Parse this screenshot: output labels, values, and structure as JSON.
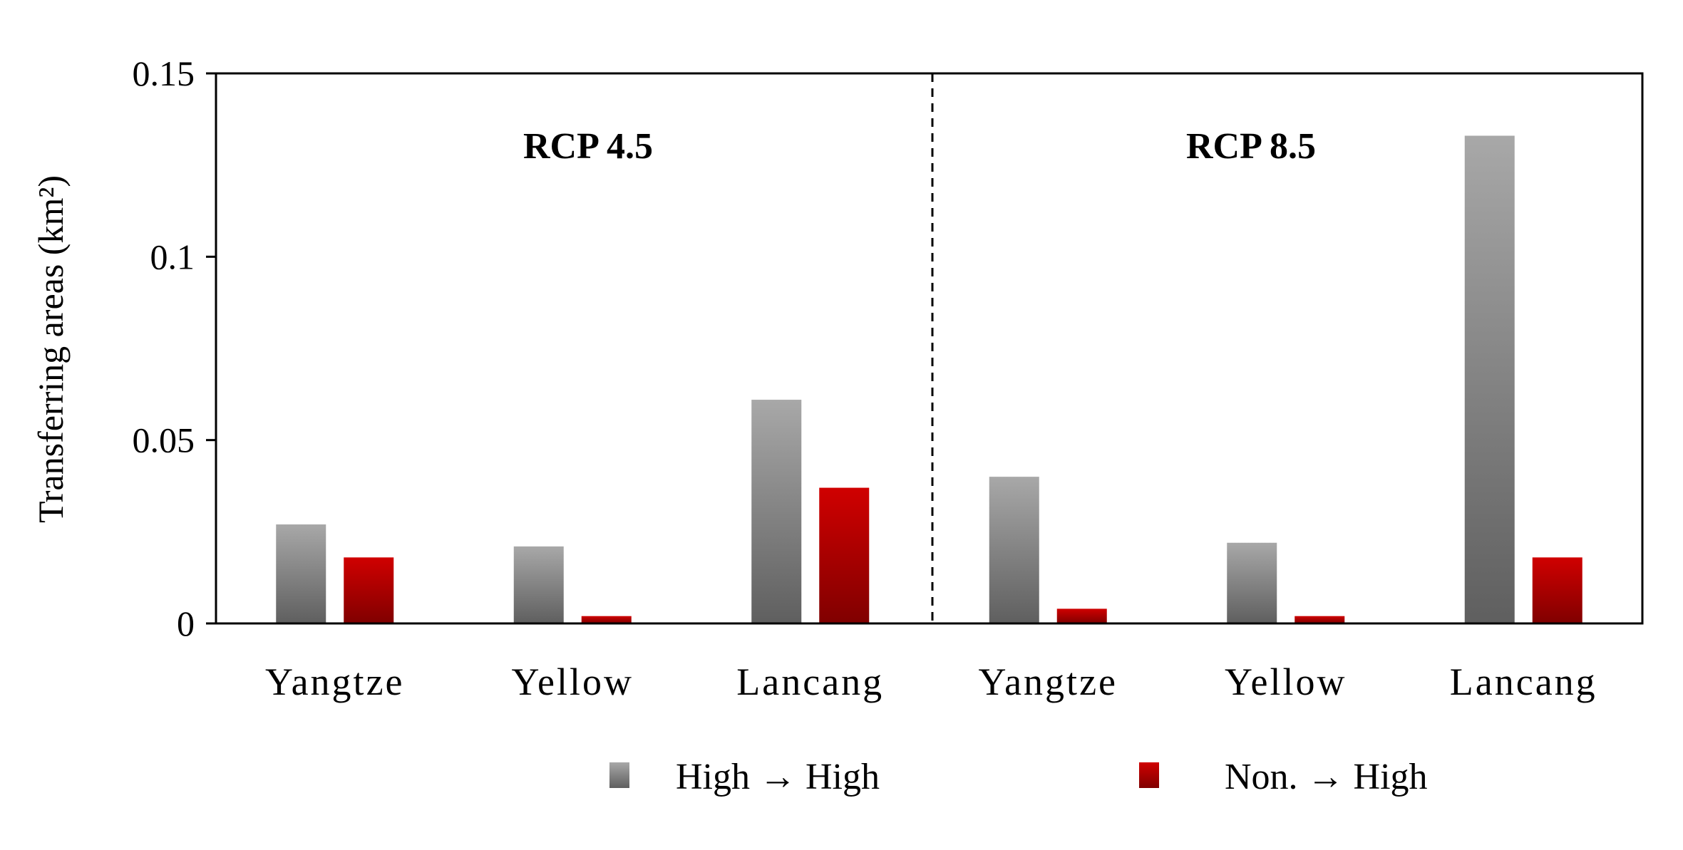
{
  "chart_data": {
    "type": "bar",
    "ylabel": "Transferring areas (km²)",
    "ylim": [
      0,
      0.15
    ],
    "yticks": [
      "0",
      "0.05",
      "0.1",
      "0.15"
    ],
    "ytick_values": [
      0,
      0.05,
      0.1,
      0.15
    ],
    "categories": [
      "Yangtze",
      "Yellow",
      "Lancang",
      "Yangtze",
      "Yellow",
      "Lancang"
    ],
    "group_labels": [
      "RCP 4.5",
      "RCP 8.5"
    ],
    "group_divider": "dashed vertical line between the two scenario groups",
    "series": [
      {
        "name": "High → High",
        "color": "#8c8c8c",
        "values": [
          0.027,
          0.021,
          0.061,
          0.04,
          0.022,
          0.133
        ]
      },
      {
        "name": "Non. → High",
        "color": "#c00000",
        "values": [
          0.018,
          0.002,
          0.037,
          0.004,
          0.002,
          0.018
        ]
      }
    ],
    "legend_position": "bottom",
    "grid": false
  }
}
